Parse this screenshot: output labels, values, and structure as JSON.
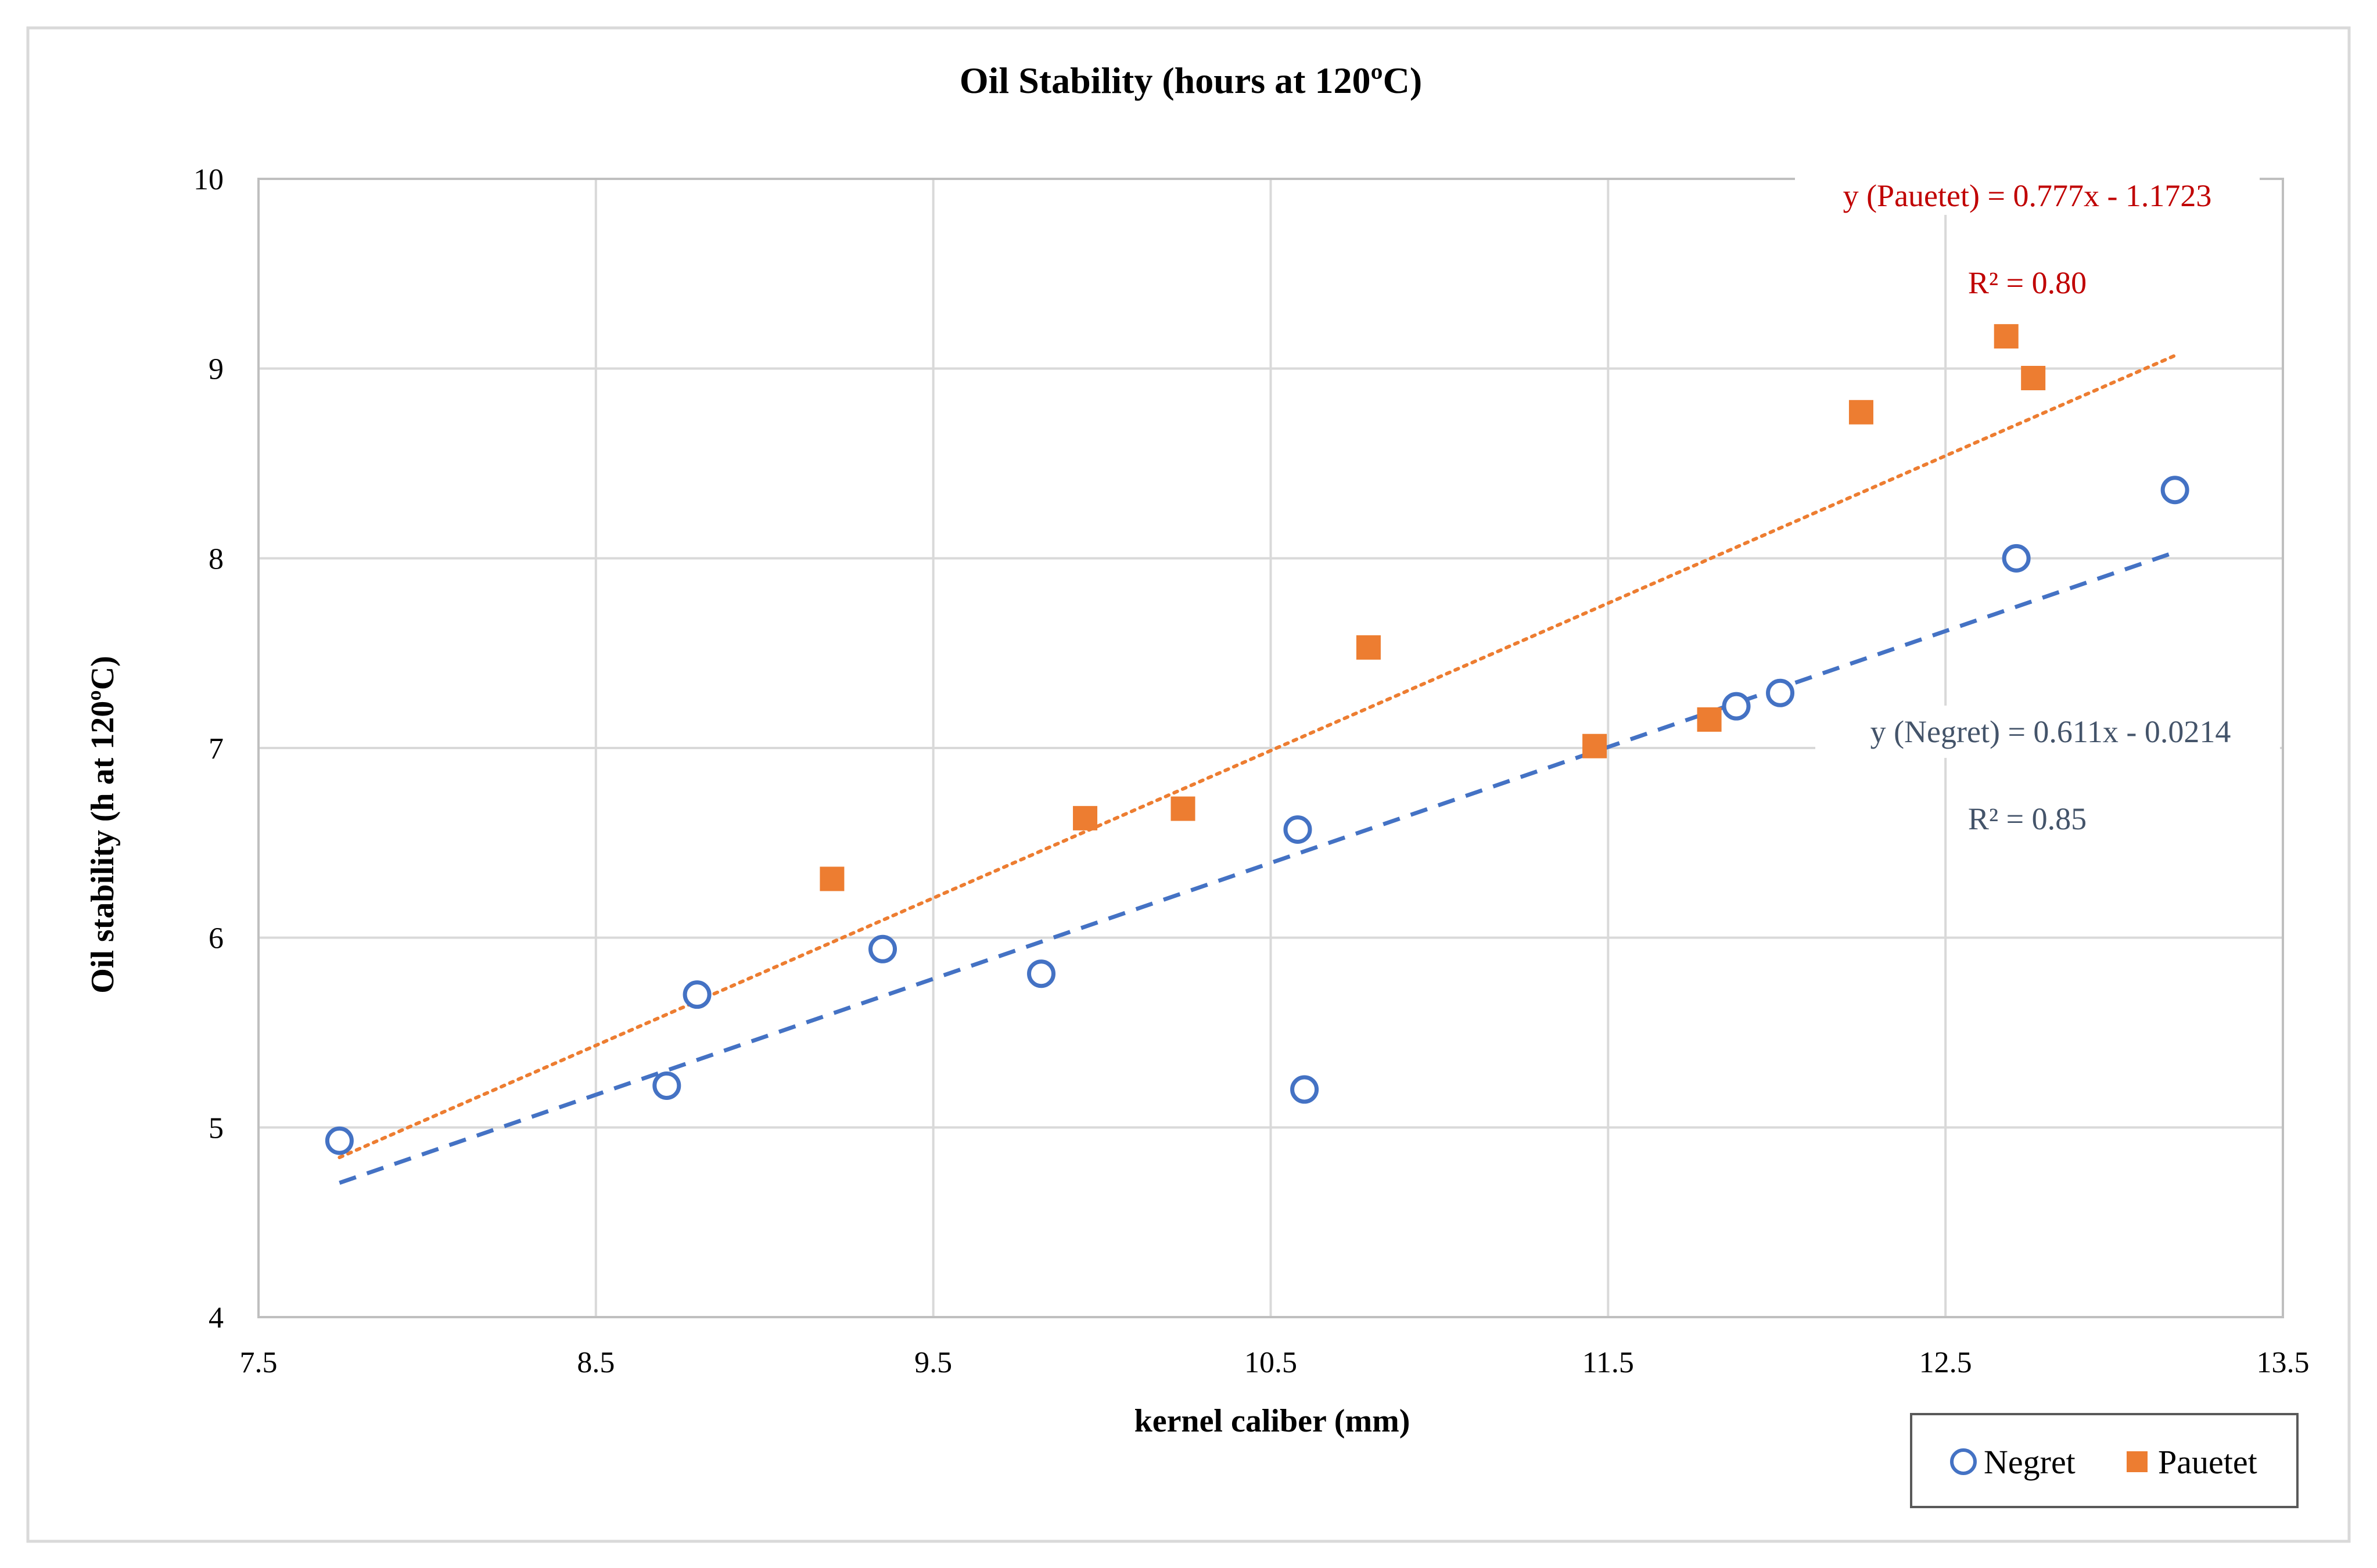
{
  "chart_data": {
    "type": "scatter",
    "title": "Oil Stability  (hours at 120ºC)",
    "xlabel": "kernel caliber (mm)",
    "ylabel": "Oil stability  (h at 120ºC)",
    "xlim": [
      7.5,
      13.5
    ],
    "ylim": [
      4,
      10
    ],
    "x_ticks": [
      7.5,
      8.5,
      9.5,
      10.5,
      11.5,
      12.5,
      13.5
    ],
    "x_tick_labels": [
      "7.5",
      "8.5",
      "9.5",
      "10.5",
      "11.5",
      "12.5",
      "13.5"
    ],
    "y_ticks": [
      4,
      5,
      6,
      7,
      8,
      9,
      10
    ],
    "y_tick_labels": [
      "4",
      "5",
      "6",
      "7",
      "8",
      "9",
      "10"
    ],
    "grid": true,
    "legend_position": "bottom-right",
    "series": [
      {
        "name": "Negret",
        "marker": "circle-open",
        "color": "#4472C4",
        "points": [
          {
            "x": 7.74,
            "y": 4.93
          },
          {
            "x": 8.71,
            "y": 5.22
          },
          {
            "x": 8.8,
            "y": 5.7
          },
          {
            "x": 9.35,
            "y": 5.94
          },
          {
            "x": 9.82,
            "y": 5.81
          },
          {
            "x": 10.58,
            "y": 6.57
          },
          {
            "x": 10.6,
            "y": 5.2
          },
          {
            "x": 11.88,
            "y": 7.22
          },
          {
            "x": 12.01,
            "y": 7.29
          },
          {
            "x": 12.71,
            "y": 8.0
          },
          {
            "x": 13.18,
            "y": 8.36
          }
        ],
        "trendline": {
          "style": "dashed",
          "slope": 0.611,
          "intercept": -0.0214,
          "x_range": [
            7.74,
            13.18
          ],
          "equation_label": "y (Negret) = 0.611x - 0.0214",
          "r2_label": "R² = 0.85"
        }
      },
      {
        "name": "Pauetet",
        "marker": "square-filled",
        "color": "#ED7D31",
        "points": [
          {
            "x": 9.2,
            "y": 6.31
          },
          {
            "x": 9.95,
            "y": 6.63
          },
          {
            "x": 10.24,
            "y": 6.68
          },
          {
            "x": 10.79,
            "y": 7.53
          },
          {
            "x": 11.46,
            "y": 7.01
          },
          {
            "x": 11.8,
            "y": 7.15
          },
          {
            "x": 12.25,
            "y": 8.77
          },
          {
            "x": 12.68,
            "y": 9.17
          },
          {
            "x": 12.76,
            "y": 8.95
          }
        ],
        "trendline": {
          "style": "dotted",
          "slope": 0.777,
          "intercept": -1.1723,
          "x_range": [
            7.74,
            13.18
          ],
          "equation_label": "y (Pauetet) = 0.777x - 1.1723",
          "r2_label": "R² = 0.80"
        }
      }
    ]
  },
  "colors": {
    "negret_equation": "#44546A",
    "pauetet_equation": "#C00000",
    "grid": "#D9D9D9",
    "frame": "#BFBFBF"
  }
}
